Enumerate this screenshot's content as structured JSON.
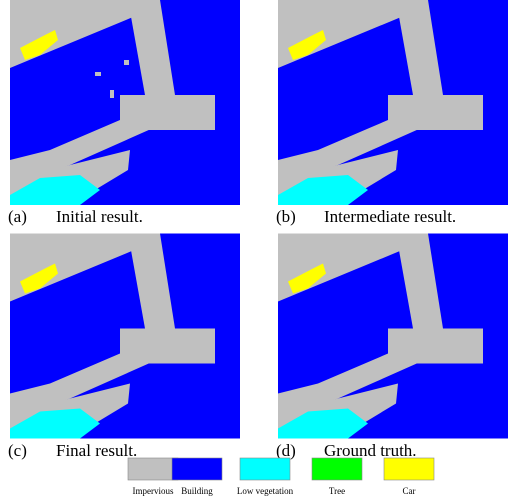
{
  "panels": [
    {
      "tag": "(a)",
      "caption": "Initial result."
    },
    {
      "tag": "(b)",
      "caption": "Intermediate result."
    },
    {
      "tag": "(c)",
      "caption": "Final result."
    },
    {
      "tag": "(d)",
      "caption": "Ground truth."
    }
  ],
  "legend": [
    {
      "name": "Impervious",
      "color": "#c0c0c0"
    },
    {
      "name": "Building",
      "color": "#0000ff"
    },
    {
      "name": "Low vegetation",
      "color": "#00ffff"
    },
    {
      "name": "Tree",
      "color": "#00ff00"
    },
    {
      "name": "Car",
      "color": "#ffff00"
    }
  ]
}
